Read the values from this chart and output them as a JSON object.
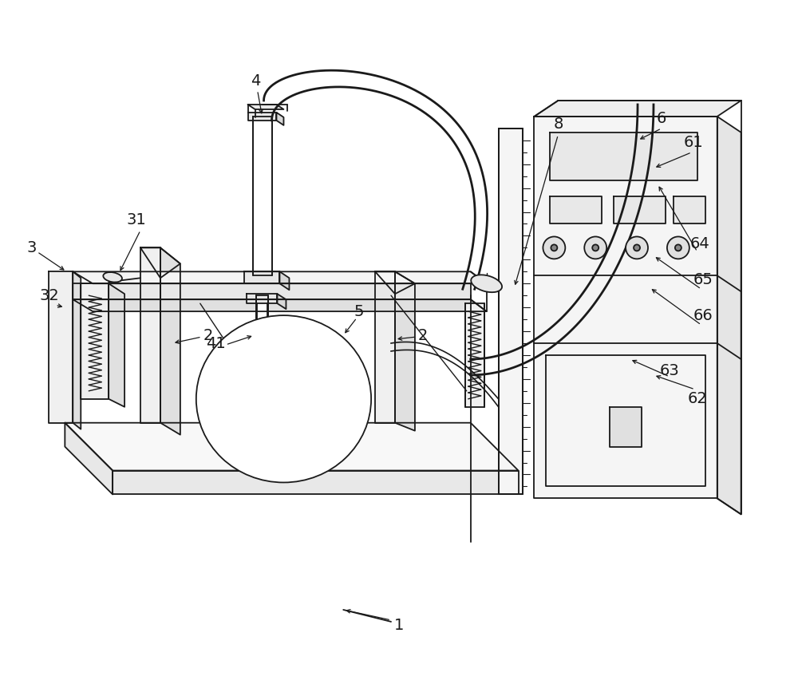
{
  "background_color": "#ffffff",
  "line_color": "#1a1a1a",
  "fig_width": 10.0,
  "fig_height": 8.72,
  "lw": 1.3
}
